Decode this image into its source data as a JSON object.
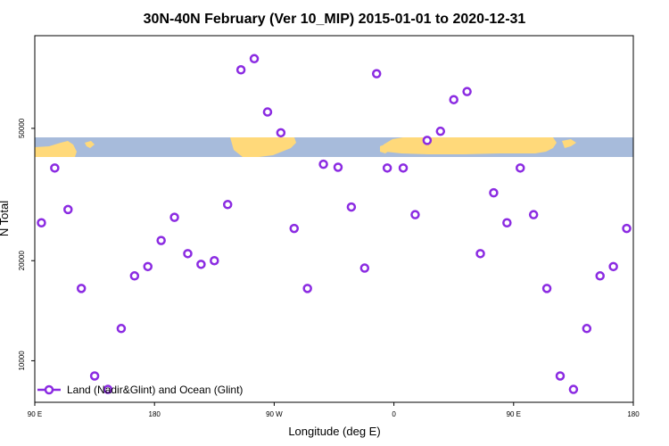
{
  "chart_data": {
    "type": "scatter",
    "title": "30N-40N February (Ver 10_MIP)   2015-01-01 to 2020-12-31",
    "xlabel": "Longitude (deg E)",
    "ylabel": "N Total",
    "x_ticks": [
      {
        "value": 90,
        "label": "90 E"
      },
      {
        "value": 180,
        "label": "180"
      },
      {
        "value": 270,
        "label": "90 W"
      },
      {
        "value": 360,
        "label": "0"
      },
      {
        "value": 450,
        "label": "90 E"
      },
      {
        "value": 540,
        "label": "180"
      }
    ],
    "y_ticks": [
      {
        "value": 10000,
        "label": "10000"
      },
      {
        "value": 20000,
        "label": "20000"
      },
      {
        "value": 50000,
        "label": "50000"
      }
    ],
    "xlim": [
      90,
      540
    ],
    "ylim": [
      7500,
      95000
    ],
    "y_scale": "log",
    "legend": {
      "label": "Land (Nadir&Glint) and Ocean (Glint)",
      "position": "bottom-left"
    },
    "colors": {
      "series": "#8B2BE2",
      "ocean": "#A7BBDB",
      "land": "#FFD97A"
    },
    "series": [
      {
        "name": "Land (Nadir&Glint) and Ocean (Glint)",
        "x": [
          95,
          105,
          115,
          125,
          135,
          145,
          155,
          165,
          175,
          185,
          195,
          205,
          215,
          225,
          235,
          245,
          255,
          265,
          275,
          285,
          295,
          307,
          318,
          328,
          338,
          347,
          355,
          367,
          376,
          385,
          395,
          405,
          415,
          425,
          435,
          445,
          455,
          465,
          475,
          485,
          495,
          505,
          515,
          525,
          535
        ],
        "y": [
          26000,
          38000,
          28500,
          16500,
          9000,
          8200,
          12500,
          18000,
          19200,
          23000,
          27000,
          21000,
          19500,
          20000,
          29500,
          75000,
          81000,
          56000,
          48500,
          25000,
          16500,
          39000,
          38200,
          29000,
          19000,
          73000,
          38000,
          38000,
          27500,
          46000,
          49000,
          61000,
          64500,
          21000,
          32000,
          26000,
          38000,
          27500,
          16500,
          9000,
          8200,
          12500,
          18000,
          19200,
          25000
        ]
      }
    ]
  }
}
